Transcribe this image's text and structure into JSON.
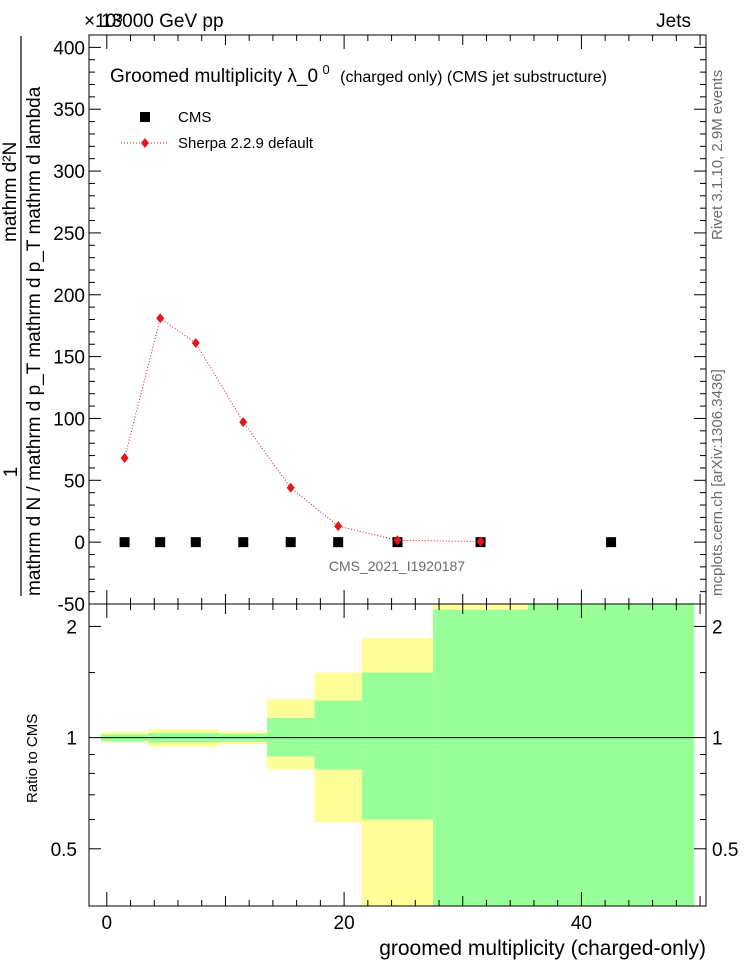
{
  "header": {
    "energy_label": "13000 GeV pp",
    "process_label": "Jets",
    "exponent_label": "×10³",
    "side_label_rivet": "Rivet 3.1.10,  2.9M events",
    "side_label_mcplots": "mcplots.cern.ch [arXiv:1306.3436]",
    "analysis_id": "CMS_2021_I1920187"
  },
  "main_plot": {
    "title_main": "Groomed multiplicity  λ_0",
    "title_sup": "0",
    "title_tail": "(charged only) (CMS jet substructure)",
    "ylabel_num": "1",
    "ylabel_den1": "mathrm d N / mathrm d p_T mathrm d p_T mathrm d lambda",
    "ylabel_num2": "mathrm d²N"
  },
  "ratio_plot": {
    "ylabel": "Ratio to CMS",
    "xlabel": "groomed multiplicity (charged-only)"
  },
  "colors": {
    "mc_red": "#e8141b",
    "stat_band": "#99ff99",
    "syst_band": "#ffff99",
    "data_black": "#000000"
  },
  "chart_data": [
    {
      "type": "scatter",
      "title": "Groomed multiplicity  λ_0^0 (charged only) (CMS jet substructure)",
      "xlabel": "groomed multiplicity (charged-only)",
      "ylabel": "1 / (mathrm d N / mathrm d p_T) mathrm d²N / (mathrm d p_T mathrm d lambda)",
      "y_scale_factor": "×10³",
      "xlim": [
        -1.5,
        50.5
      ],
      "ylim": [
        -50,
        410
      ],
      "yticks": [
        -50,
        0,
        50,
        100,
        150,
        200,
        250,
        300,
        350,
        400
      ],
      "legend_position": "top-left",
      "series": [
        {
          "name": "CMS",
          "marker": "square",
          "color": "#000000",
          "x": [
            1.5,
            4.5,
            7.5,
            11.5,
            15.5,
            19.5,
            24.5,
            31.5,
            42.5
          ],
          "y": [
            0,
            0,
            0,
            0,
            0,
            0,
            0,
            0,
            0
          ]
        },
        {
          "name": "Sherpa 2.2.9 default",
          "marker": "diamond",
          "line": "dotted",
          "color": "#e8141b",
          "x": [
            1.5,
            4.5,
            7.5,
            11.5,
            15.5,
            19.5,
            24.5,
            31.5
          ],
          "y": [
            68,
            181,
            161,
            97,
            44,
            13,
            1.5,
            0.5
          ]
        }
      ]
    },
    {
      "type": "area",
      "title": "",
      "xlabel": "groomed multiplicity (charged-only)",
      "ylabel": "Ratio to CMS",
      "xlim": [
        -1.5,
        50.5
      ],
      "ylim": [
        0.35,
        2.3
      ],
      "yticks": [
        0.5,
        1,
        2
      ],
      "xticks": [
        0,
        20,
        40
      ],
      "reference_line": 1,
      "bins": [
        {
          "x0": -0.5,
          "x1": 3.5,
          "stat": [
            0.98,
            1.02
          ],
          "syst": [
            0.97,
            1.035
          ]
        },
        {
          "x0": 3.5,
          "x1": 9.5,
          "stat": [
            0.97,
            1.03
          ],
          "syst": [
            0.945,
            1.055
          ]
        },
        {
          "x0": 9.5,
          "x1": 13.5,
          "stat": [
            0.975,
            1.025
          ],
          "syst": [
            0.96,
            1.04
          ]
        },
        {
          "x0": 13.5,
          "x1": 17.5,
          "stat": [
            0.89,
            1.13
          ],
          "syst": [
            0.82,
            1.27
          ]
        },
        {
          "x0": 17.5,
          "x1": 21.5,
          "stat": [
            0.82,
            1.26
          ],
          "syst": [
            0.59,
            1.5
          ]
        },
        {
          "x0": 21.5,
          "x1": 27.5,
          "stat": [
            0.6,
            1.5
          ],
          "syst": [
            0.35,
            1.86
          ]
        },
        {
          "x0": 27.5,
          "x1": 35.5,
          "stat": [
            0.35,
            2.22
          ],
          "syst": [
            0.35,
            2.3
          ]
        },
        {
          "x0": 35.5,
          "x1": 49.5,
          "stat": [
            0.35,
            2.3
          ],
          "syst": [
            0.35,
            2.3
          ]
        }
      ]
    }
  ]
}
